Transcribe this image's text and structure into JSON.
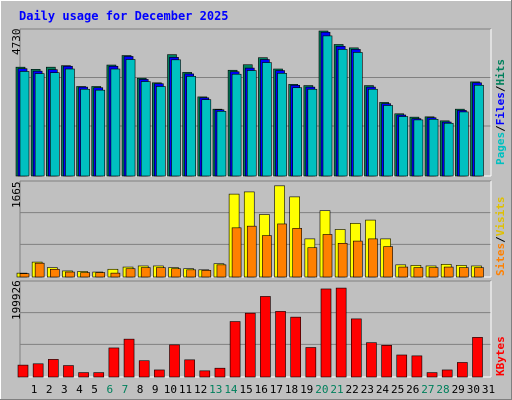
{
  "title": "Daily usage for December 2025",
  "colors": {
    "background": "#C0C0C0",
    "title": "#0000FF",
    "hits": "#00805C",
    "files": "#0000FF",
    "pages": "#00C0C0",
    "sites": "#FF8000",
    "visits": "#E0C000",
    "kbytes": "#FF0000",
    "weekend_label": "#00805C",
    "weekday_label": "#000000"
  },
  "chart_data": [
    {
      "type": "bar",
      "name": "hits-files-pages",
      "axis_max_label": "4730",
      "ylim": [
        0,
        4730
      ],
      "legend": [
        "Pages",
        "Files",
        "Hits"
      ],
      "legend_separator": "/",
      "x": [
        1,
        2,
        3,
        4,
        5,
        6,
        7,
        8,
        9,
        10,
        11,
        12,
        13,
        14,
        15,
        16,
        17,
        18,
        19,
        20,
        21,
        22,
        23,
        24,
        25,
        26,
        27,
        28,
        29,
        30,
        31
      ],
      "series": [
        {
          "name": "Hits",
          "values": [
            3550,
            3480,
            3550,
            3600,
            2920,
            2920,
            3620,
            3930,
            3190,
            3040,
            3960,
            3380,
            2580,
            2180,
            3450,
            3630,
            3860,
            3490,
            2990,
            2950,
            4730,
            4290,
            4180,
            2950,
            2400,
            2030,
            1920,
            1930,
            1800,
            2180,
            3070
          ]
        },
        {
          "name": "Files",
          "values": [
            3500,
            3420,
            3470,
            3580,
            2900,
            2880,
            3580,
            3900,
            3150,
            3010,
            3870,
            3330,
            2550,
            2160,
            3400,
            3520,
            3800,
            3440,
            2960,
            2900,
            4690,
            4230,
            4130,
            2900,
            2360,
            1990,
            1870,
            1900,
            1760,
            2140,
            3040
          ]
        },
        {
          "name": "Pages",
          "values": [
            3410,
            3340,
            3370,
            3490,
            2830,
            2800,
            3490,
            3800,
            3080,
            2920,
            3790,
            3250,
            2490,
            2110,
            3320,
            3440,
            3700,
            3350,
            2880,
            2830,
            4570,
            4130,
            4030,
            2830,
            2300,
            1940,
            1830,
            1850,
            1720,
            2090,
            2960
          ]
        }
      ]
    },
    {
      "type": "bar",
      "name": "visits-sites",
      "axis_max_label": "1665",
      "ylim": [
        0,
        1665
      ],
      "legend": [
        "Sites",
        "Visits"
      ],
      "legend_separator": "/",
      "x": [
        1,
        2,
        3,
        4,
        5,
        6,
        7,
        8,
        9,
        10,
        11,
        12,
        13,
        14,
        15,
        16,
        17,
        18,
        19,
        20,
        21,
        22,
        23,
        24,
        25,
        26,
        27,
        28,
        29,
        30,
        31
      ],
      "series": [
        {
          "name": "Visits",
          "values": [
            70,
            270,
            170,
            110,
            100,
            90,
            140,
            180,
            200,
            200,
            170,
            150,
            130,
            240,
            1500,
            1540,
            1130,
            1650,
            1450,
            690,
            1200,
            860,
            970,
            1030,
            690,
            220,
            210,
            200,
            230,
            210,
            200
          ]
        },
        {
          "name": "Sites",
          "values": [
            60,
            250,
            140,
            90,
            80,
            80,
            70,
            150,
            170,
            170,
            150,
            130,
            120,
            220,
            890,
            920,
            750,
            960,
            880,
            530,
            770,
            610,
            650,
            690,
            550,
            180,
            170,
            170,
            180,
            170,
            170
          ]
        }
      ]
    },
    {
      "type": "bar",
      "name": "kbytes",
      "axis_max_label": "199926",
      "ylim": [
        0,
        199926
      ],
      "legend": [
        "KBytes"
      ],
      "x": [
        1,
        2,
        3,
        4,
        5,
        6,
        7,
        8,
        9,
        10,
        11,
        12,
        13,
        14,
        15,
        16,
        17,
        18,
        19,
        20,
        21,
        22,
        23,
        24,
        25,
        26,
        27,
        28,
        29,
        30,
        31
      ],
      "series": [
        {
          "name": "KBytes",
          "values": [
            27000,
            30000,
            40000,
            26000,
            10000,
            10000,
            66000,
            86000,
            37000,
            16000,
            73000,
            39000,
            14000,
            20000,
            126000,
            145000,
            183000,
            149000,
            136000,
            67000,
            200000,
            202000,
            132000,
            78000,
            72000,
            50000,
            48000,
            10000,
            16000,
            33000,
            90000
          ]
        }
      ]
    }
  ],
  "x_labels": [
    "1",
    "2",
    "3",
    "4",
    "5",
    "6",
    "7",
    "8",
    "9",
    "10",
    "11",
    "12",
    "13",
    "14",
    "15",
    "16",
    "17",
    "18",
    "19",
    "20",
    "21",
    "22",
    "23",
    "24",
    "25",
    "26",
    "27",
    "28",
    "29",
    "30",
    "31"
  ],
  "weekend_days": [
    6,
    7,
    13,
    14,
    20,
    21,
    27,
    28
  ]
}
